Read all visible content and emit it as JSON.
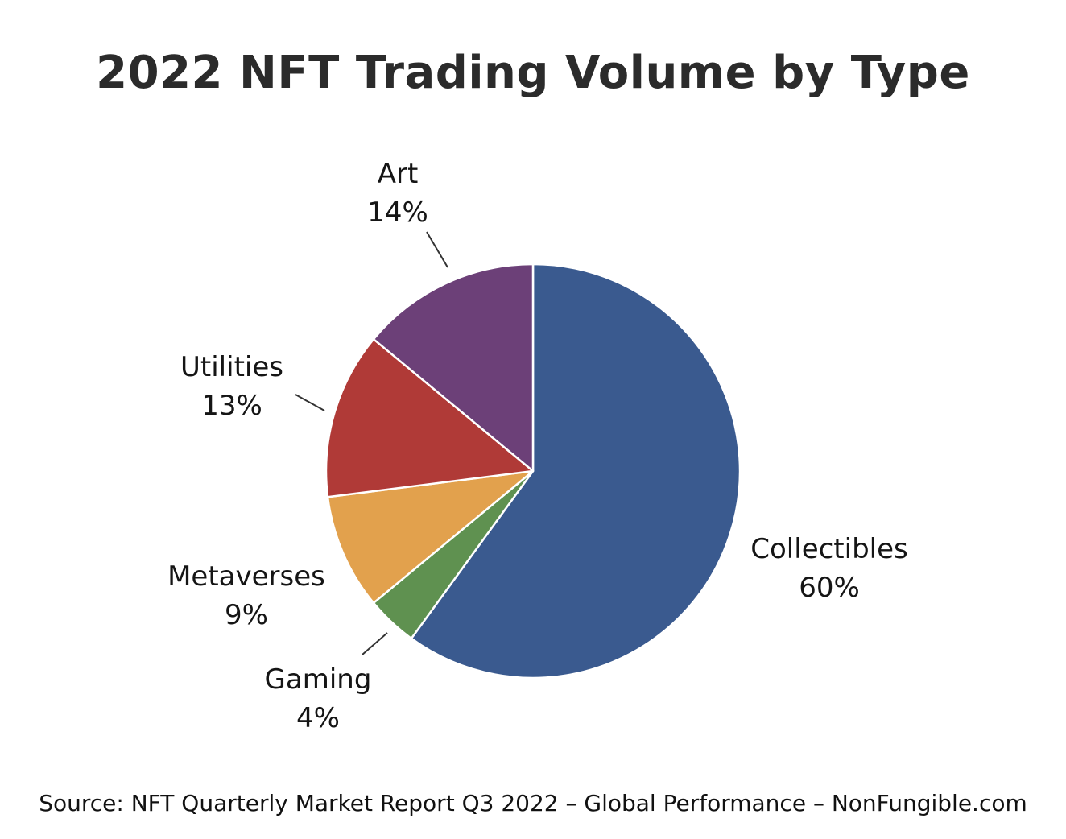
{
  "title": "2022 NFT Trading Volume by Type",
  "source": "Source: NFT Quarterly Market Report Q3 2022 – Global Performance – NonFungible.com",
  "chart_data": {
    "type": "pie",
    "title": "2022 NFT Trading Volume by Type",
    "start_angle_deg": -90,
    "direction": "clockwise",
    "legend_position": "outside-labels",
    "slices": [
      {
        "label": "Collectibles",
        "value": 60,
        "display": "60%",
        "color": "#3a5a8f"
      },
      {
        "label": "Gaming",
        "value": 4,
        "display": "4%",
        "color": "#5f9150"
      },
      {
        "label": "Metaverses",
        "value": 9,
        "display": "9%",
        "color": "#e2a14d"
      },
      {
        "label": "Utilities",
        "value": 13,
        "display": "13%",
        "color": "#b03a37"
      },
      {
        "label": "Art",
        "value": 14,
        "display": "14%",
        "color": "#6c4078"
      }
    ]
  }
}
